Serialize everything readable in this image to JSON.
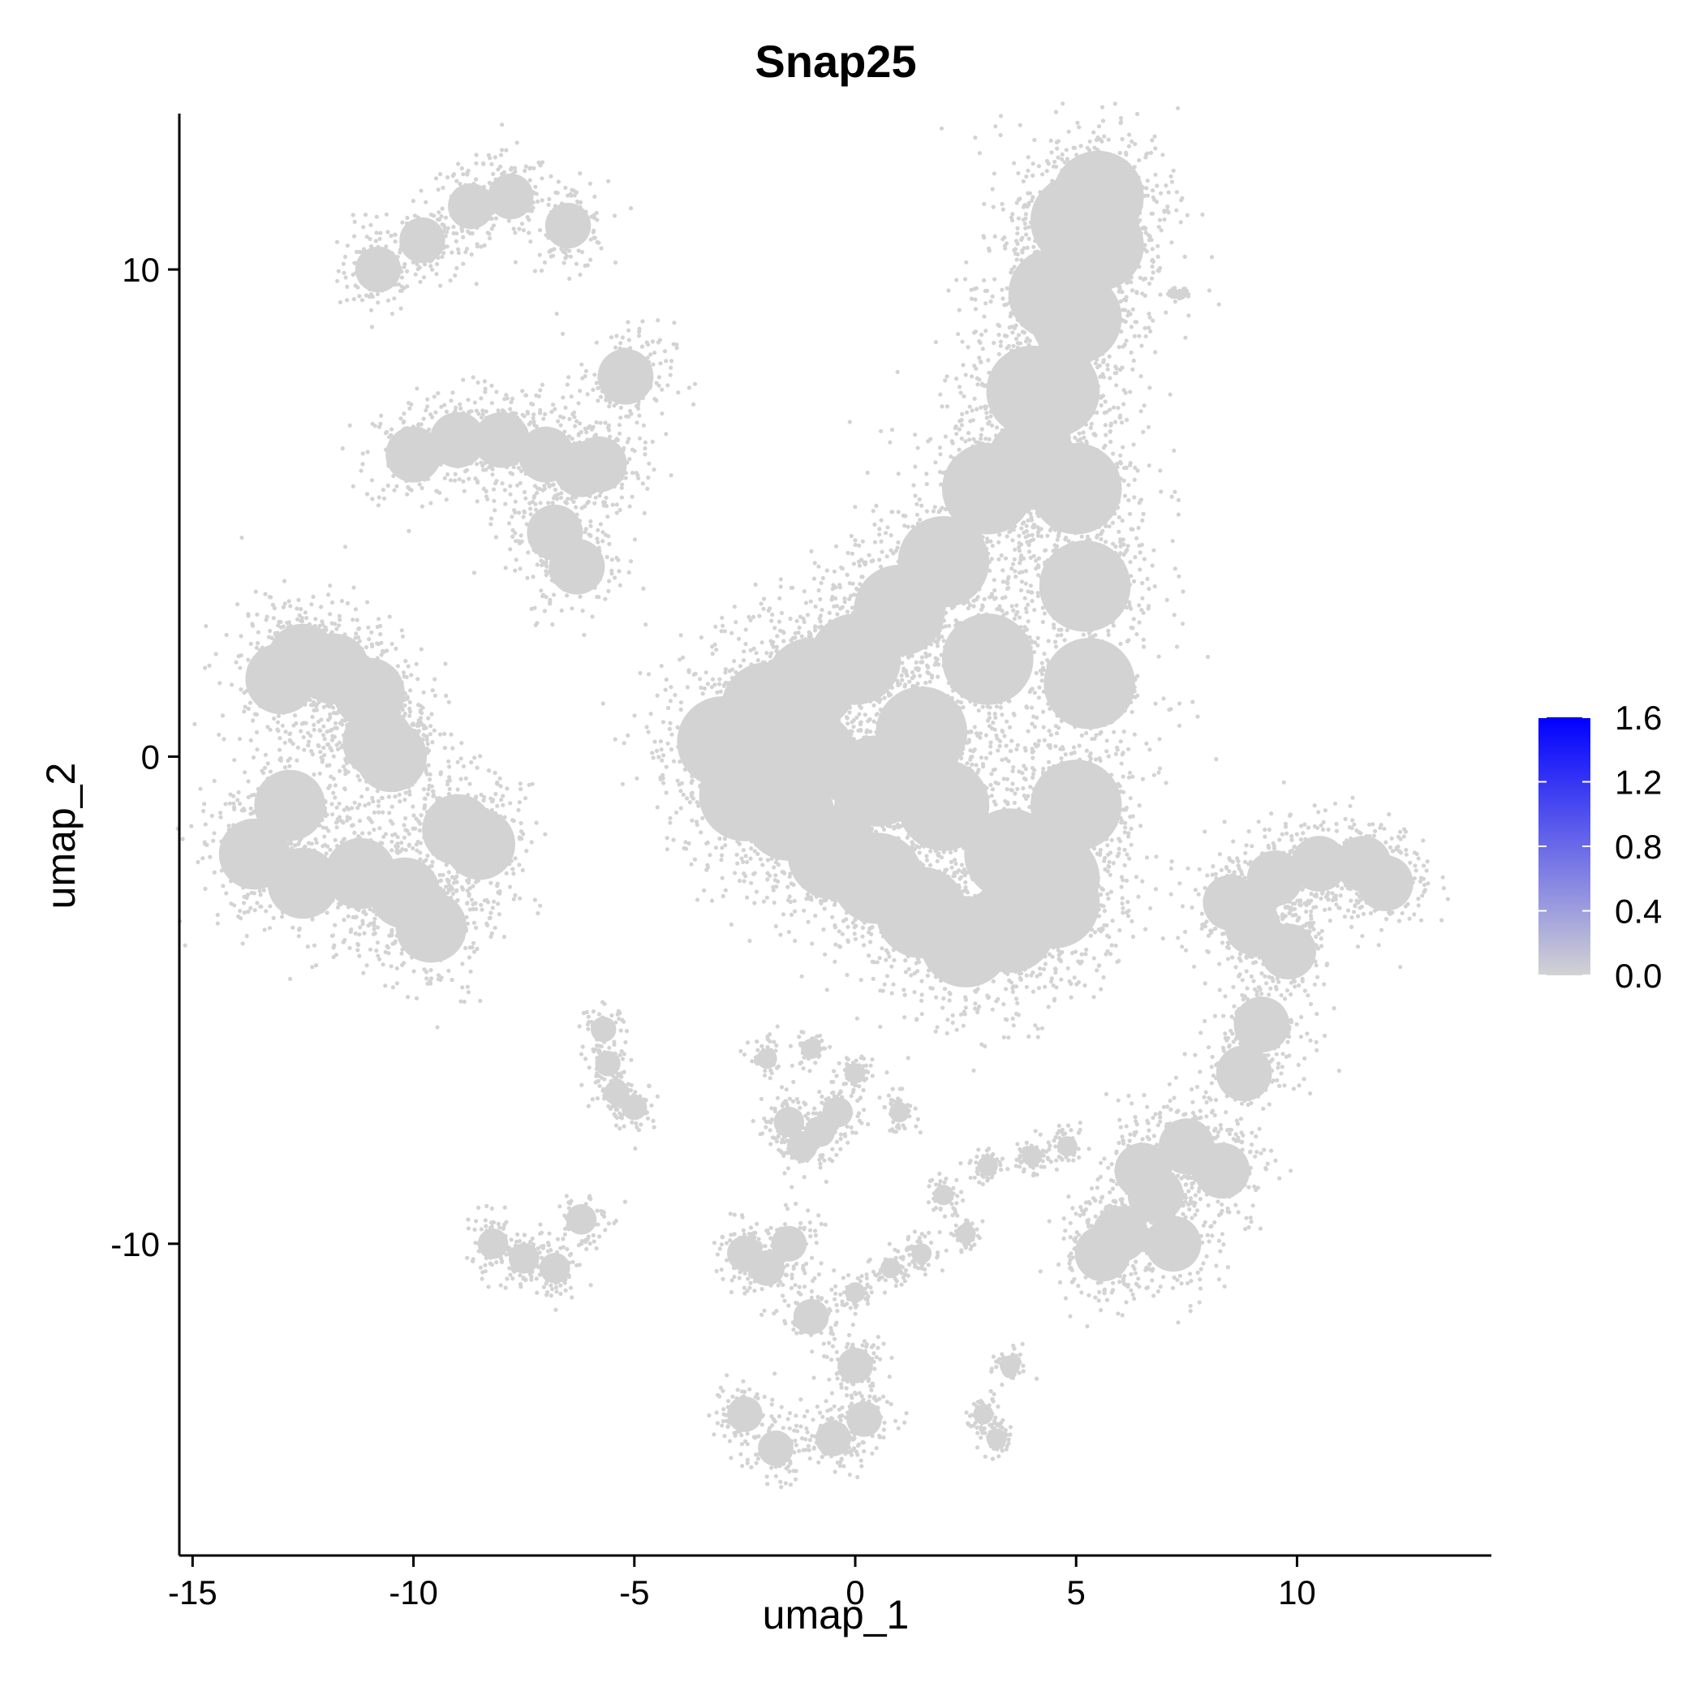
{
  "chart_data": {
    "type": "scatter",
    "title": "Snap25",
    "xlabel": "umap_1",
    "ylabel": "umap_2",
    "xlim": [
      -15.3,
      14.4
    ],
    "ylim": [
      -16.4,
      13.2
    ],
    "x_ticks": [
      -15,
      -10,
      -5,
      0,
      5,
      10
    ],
    "x_tick_labels": [
      "-15",
      "-10",
      "-5",
      "0",
      "5",
      "10"
    ],
    "y_ticks": [
      -10,
      0,
      10
    ],
    "y_tick_labels": [
      "-10",
      "0",
      "10"
    ],
    "grid": false,
    "point_color_low": "#d3d3d3",
    "point_color_high": "#0000ff",
    "feature_expression": "all cells ≈ 0.0 (grey)",
    "clusters": [
      {
        "x": [
          -10.8,
          -9.8,
          -8.7,
          -7.8,
          -6.5
        ],
        "y": [
          10.0,
          10.6,
          11.3,
          11.5,
          10.9
        ],
        "spread": 0.45
      },
      {
        "x": [
          -10.0,
          -9.0,
          -8.0,
          -7.0,
          -6.2,
          -5.8,
          -5.2,
          -6.8,
          -6.3
        ],
        "y": [
          6.2,
          6.5,
          6.5,
          6.2,
          5.9,
          6.0,
          7.8,
          4.6,
          3.9
        ],
        "spread": 0.55
      },
      {
        "x": [
          -13.0,
          -12.5,
          -11.8,
          -11.0,
          -10.8,
          -10.5,
          -12.8,
          -13.6,
          -12.5,
          -11.2,
          -10.2,
          -9.6,
          -9.0,
          -8.5
        ],
        "y": [
          1.6,
          2.0,
          1.8,
          1.3,
          0.3,
          0.0,
          -1.0,
          -2.0,
          -2.6,
          -2.4,
          -2.8,
          -3.5,
          -1.5,
          -1.8
        ],
        "spread": 0.7
      },
      {
        "x": [
          -3.0,
          -2.0,
          -1.0,
          0.0,
          1.0,
          2.0,
          3.0,
          4.0,
          5.0,
          5.5,
          5.5,
          5.0,
          4.5,
          4.5,
          5.0,
          5.2,
          5.3,
          5.0,
          4.5,
          3.5,
          2.5,
          1.5,
          0.5,
          -0.5,
          -1.5,
          -2.5,
          -1.0,
          0.5,
          2.0,
          3.5,
          4.5,
          3.0,
          1.5,
          4.0
        ],
        "y": [
          0.3,
          1.0,
          1.5,
          2.0,
          3.0,
          4.0,
          5.5,
          7.5,
          9.0,
          10.5,
          11.5,
          11.0,
          9.5,
          7.5,
          5.5,
          3.5,
          1.5,
          -1.0,
          -2.5,
          -3.5,
          -3.8,
          -3.2,
          -2.5,
          -2.0,
          -1.2,
          -0.8,
          0.0,
          -0.5,
          -1.0,
          -2.0,
          -3.0,
          2.0,
          0.5,
          6.0
        ],
        "spread": 0.9
      },
      {
        "x": [
          8.5,
          9.0,
          9.5,
          10.5,
          11.5,
          12.0,
          9.8,
          9.2,
          8.8,
          7.5,
          6.8,
          6.0,
          5.6,
          7.2,
          8.3,
          6.5
        ],
        "y": [
          -3.0,
          -3.5,
          -2.5,
          -2.2,
          -2.2,
          -2.6,
          -4.0,
          -5.5,
          -6.5,
          -8.0,
          -9.0,
          -9.8,
          -10.2,
          -10.0,
          -8.5,
          -8.5
        ],
        "spread": 0.55
      },
      {
        "x": [
          -5.7,
          -5.6,
          -5.4,
          -5.0
        ],
        "y": [
          -5.6,
          -6.3,
          -6.9,
          -7.2
        ],
        "spread": 0.25
      },
      {
        "x": [
          -1.5,
          -1.2,
          -0.8,
          -0.4
        ],
        "y": [
          -7.5,
          -8.0,
          -7.7,
          -7.3
        ],
        "spread": 0.3
      },
      {
        "x": [
          -2.0,
          -1.0,
          0.0,
          1.0,
          2.0,
          3.0,
          4.0,
          4.8
        ],
        "y": [
          -6.2,
          -6.0,
          -6.5,
          -7.3,
          -9.0,
          -8.4,
          -8.2,
          -8.0
        ],
        "spread": 0.2
      },
      {
        "x": [
          -8.2,
          -7.5,
          -6.8,
          -6.2
        ],
        "y": [
          -10.0,
          -10.3,
          -10.5,
          -9.5
        ],
        "spread": 0.3
      },
      {
        "x": [
          -2.5,
          -2.0,
          -1.5,
          -1.0,
          0.0,
          0.2,
          -0.5,
          -1.8,
          -2.5
        ],
        "y": [
          -10.2,
          -10.5,
          -10.0,
          -11.5,
          -12.5,
          -13.6,
          -14.0,
          -14.2,
          -13.5
        ],
        "spread": 0.35
      },
      {
        "x": [
          0.0,
          0.8,
          1.5,
          2.5
        ],
        "y": [
          -11.0,
          -10.5,
          -10.2,
          -9.8
        ],
        "spread": 0.2
      },
      {
        "x": [
          2.9,
          3.2,
          3.5
        ],
        "y": [
          -13.5,
          -14.0,
          -12.5
        ],
        "spread": 0.2
      },
      {
        "x": [
          7.2,
          7.4
        ],
        "y": [
          9.5,
          9.5
        ],
        "spread": 0.05
      }
    ],
    "legend": {
      "title": "",
      "placement": "right",
      "tick_values": [
        0.0,
        0.4,
        0.8,
        1.2,
        1.6
      ],
      "tick_labels": [
        "0.0",
        "0.4",
        "0.8",
        "1.2",
        "1.6"
      ],
      "color_low": "#d3d3d3",
      "color_high": "#0000ff"
    }
  }
}
